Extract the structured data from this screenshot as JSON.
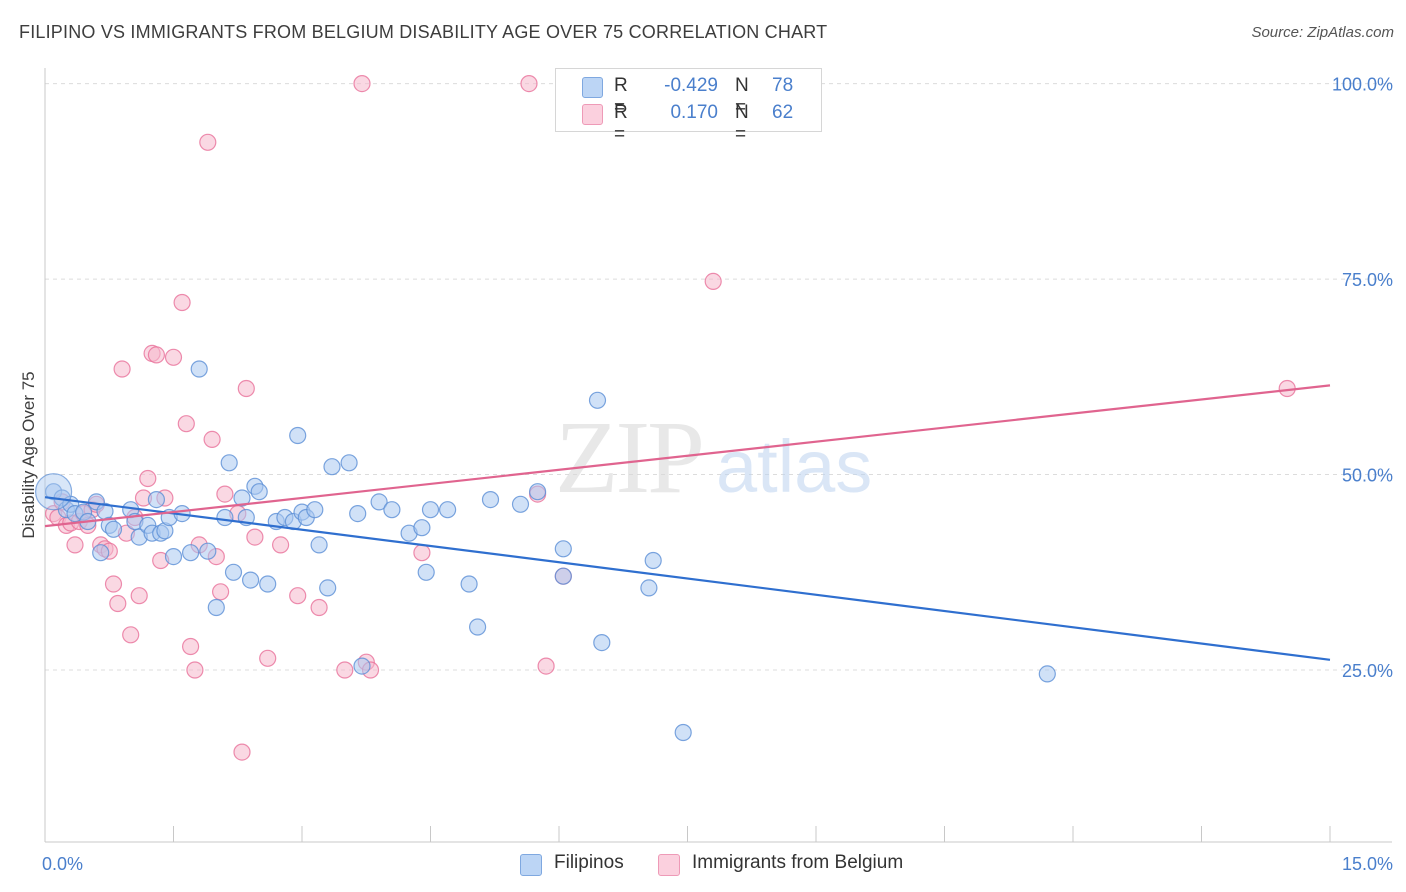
{
  "header": {
    "title": "FILIPINO VS IMMIGRANTS FROM BELGIUM DISABILITY AGE OVER 75 CORRELATION CHART",
    "source": "Source: ZipAtlas.com"
  },
  "watermark": {
    "zip": "ZIP",
    "atlas": "atlas"
  },
  "colors": {
    "blue": "#4a7fcc",
    "blue_fill": "#a9c8f0",
    "blue_line": "#2f6fcf",
    "pink": "#e8709a",
    "pink_fill": "#f6b8cc",
    "pink_line": "#e0648f",
    "grid": "#dcdcdc"
  },
  "legend_top": {
    "rows": [
      {
        "r_label": "R =",
        "r_value": "-0.429",
        "n_label": "N =",
        "n_value": "78"
      },
      {
        "r_label": "R =",
        "r_value": "0.170",
        "n_label": "N =",
        "n_value": "62"
      }
    ]
  },
  "legend_bottom": {
    "items": [
      {
        "label": "Filipinos"
      },
      {
        "label": "Immigrants from Belgium"
      }
    ]
  },
  "chart_data": {
    "type": "scatter",
    "title": "FILIPINO VS IMMIGRANTS FROM BELGIUM DISABILITY AGE OVER 75 CORRELATION CHART",
    "xlabel": "",
    "ylabel": "Disability Age Over 75",
    "xlim": [
      0,
      15
    ],
    "ylim": [
      3,
      102
    ],
    "x_tick_labels": [
      {
        "value": 0,
        "label": "0.0%"
      },
      {
        "value": 15,
        "label": "15.0%"
      }
    ],
    "y_tick_labels": [
      {
        "value": 25,
        "label": "25.0%"
      },
      {
        "value": 50,
        "label": "50.0%"
      },
      {
        "value": 75,
        "label": "75.0%"
      },
      {
        "value": 100,
        "label": "100.0%"
      }
    ],
    "grid": true,
    "legend_position": "top-center",
    "series": [
      {
        "name": "Filipinos",
        "color": "#4a7fcc",
        "trend": {
          "x": [
            0,
            15
          ],
          "y": [
            47.1,
            26.3
          ]
        },
        "points": [
          [
            0.1,
            47.8
          ],
          [
            0.2,
            47.0
          ],
          [
            0.25,
            45.5
          ],
          [
            0.3,
            46.2
          ],
          [
            0.35,
            45.0
          ],
          [
            0.45,
            45.2
          ],
          [
            0.5,
            44.0
          ],
          [
            0.6,
            46.5
          ],
          [
            0.65,
            40.0
          ],
          [
            0.7,
            45.3
          ],
          [
            0.75,
            43.5
          ],
          [
            0.8,
            43.0
          ],
          [
            1.0,
            45.5
          ],
          [
            1.05,
            44.0
          ],
          [
            1.1,
            42.0
          ],
          [
            1.2,
            43.5
          ],
          [
            1.25,
            42.5
          ],
          [
            1.3,
            46.8
          ],
          [
            1.35,
            42.5
          ],
          [
            1.4,
            42.8
          ],
          [
            1.45,
            44.5
          ],
          [
            1.5,
            39.5
          ],
          [
            1.6,
            45.0
          ],
          [
            1.7,
            40.0
          ],
          [
            1.8,
            63.5
          ],
          [
            1.9,
            40.2
          ],
          [
            2.0,
            33.0
          ],
          [
            2.1,
            44.5
          ],
          [
            2.15,
            51.5
          ],
          [
            2.2,
            37.5
          ],
          [
            2.3,
            47.0
          ],
          [
            2.35,
            44.5
          ],
          [
            2.4,
            36.5
          ],
          [
            2.45,
            48.5
          ],
          [
            2.5,
            47.8
          ],
          [
            2.6,
            36.0
          ],
          [
            2.7,
            44.0
          ],
          [
            2.8,
            44.5
          ],
          [
            2.9,
            44.0
          ],
          [
            2.95,
            55.0
          ],
          [
            3.0,
            45.2
          ],
          [
            3.05,
            44.5
          ],
          [
            3.15,
            45.5
          ],
          [
            3.2,
            41.0
          ],
          [
            3.3,
            35.5
          ],
          [
            3.35,
            51.0
          ],
          [
            3.55,
            51.5
          ],
          [
            3.65,
            45.0
          ],
          [
            3.7,
            25.5
          ],
          [
            3.9,
            46.5
          ],
          [
            4.05,
            45.5
          ],
          [
            4.25,
            42.5
          ],
          [
            4.4,
            43.2
          ],
          [
            4.45,
            37.5
          ],
          [
            4.5,
            45.5
          ],
          [
            4.7,
            45.5
          ],
          [
            4.95,
            36.0
          ],
          [
            5.05,
            30.5
          ],
          [
            5.2,
            46.8
          ],
          [
            5.55,
            46.2
          ],
          [
            5.75,
            47.8
          ],
          [
            6.05,
            37.0
          ],
          [
            6.05,
            40.5
          ],
          [
            6.45,
            59.5
          ],
          [
            6.5,
            28.5
          ],
          [
            7.05,
            35.5
          ],
          [
            7.1,
            39.0
          ],
          [
            7.45,
            17.0
          ],
          [
            11.7,
            24.5
          ]
        ]
      },
      {
        "name": "Immigrants from Belgium",
        "color": "#e8709a",
        "trend": {
          "x": [
            0,
            15
          ],
          "y": [
            43.4,
            61.4
          ]
        },
        "points": [
          [
            0.1,
            45.0
          ],
          [
            0.15,
            44.5
          ],
          [
            0.2,
            46.5
          ],
          [
            0.25,
            43.5
          ],
          [
            0.3,
            43.8
          ],
          [
            0.35,
            41.0
          ],
          [
            0.4,
            44.0
          ],
          [
            0.45,
            45.0
          ],
          [
            0.5,
            43.5
          ],
          [
            0.55,
            45.5
          ],
          [
            0.6,
            46.2
          ],
          [
            0.65,
            41.0
          ],
          [
            0.7,
            40.5
          ],
          [
            0.75,
            40.2
          ],
          [
            0.8,
            36.0
          ],
          [
            0.85,
            33.5
          ],
          [
            0.9,
            63.5
          ],
          [
            0.95,
            42.5
          ],
          [
            1.0,
            29.5
          ],
          [
            1.05,
            44.5
          ],
          [
            1.1,
            34.5
          ],
          [
            1.15,
            47.0
          ],
          [
            1.2,
            49.5
          ],
          [
            1.25,
            65.5
          ],
          [
            1.3,
            65.3
          ],
          [
            1.35,
            39.0
          ],
          [
            1.4,
            47.0
          ],
          [
            1.5,
            65.0
          ],
          [
            1.6,
            72.0
          ],
          [
            1.65,
            56.5
          ],
          [
            1.7,
            28.0
          ],
          [
            1.75,
            25.0
          ],
          [
            1.8,
            41.0
          ],
          [
            1.9,
            92.5
          ],
          [
            1.95,
            54.5
          ],
          [
            2.0,
            39.5
          ],
          [
            2.05,
            35.0
          ],
          [
            2.1,
            47.5
          ],
          [
            2.25,
            45.0
          ],
          [
            2.3,
            14.5
          ],
          [
            2.35,
            61.0
          ],
          [
            2.45,
            42.0
          ],
          [
            2.6,
            26.5
          ],
          [
            2.75,
            41.0
          ],
          [
            2.95,
            34.5
          ],
          [
            3.2,
            33.0
          ],
          [
            3.5,
            25.0
          ],
          [
            3.7,
            100.0
          ],
          [
            3.75,
            26.0
          ],
          [
            3.8,
            25.0
          ],
          [
            4.4,
            40.0
          ],
          [
            5.65,
            100.0
          ],
          [
            5.75,
            47.5
          ],
          [
            5.85,
            25.5
          ],
          [
            6.05,
            37.0
          ],
          [
            7.8,
            74.7
          ],
          [
            14.5,
            61.0
          ]
        ]
      }
    ]
  }
}
